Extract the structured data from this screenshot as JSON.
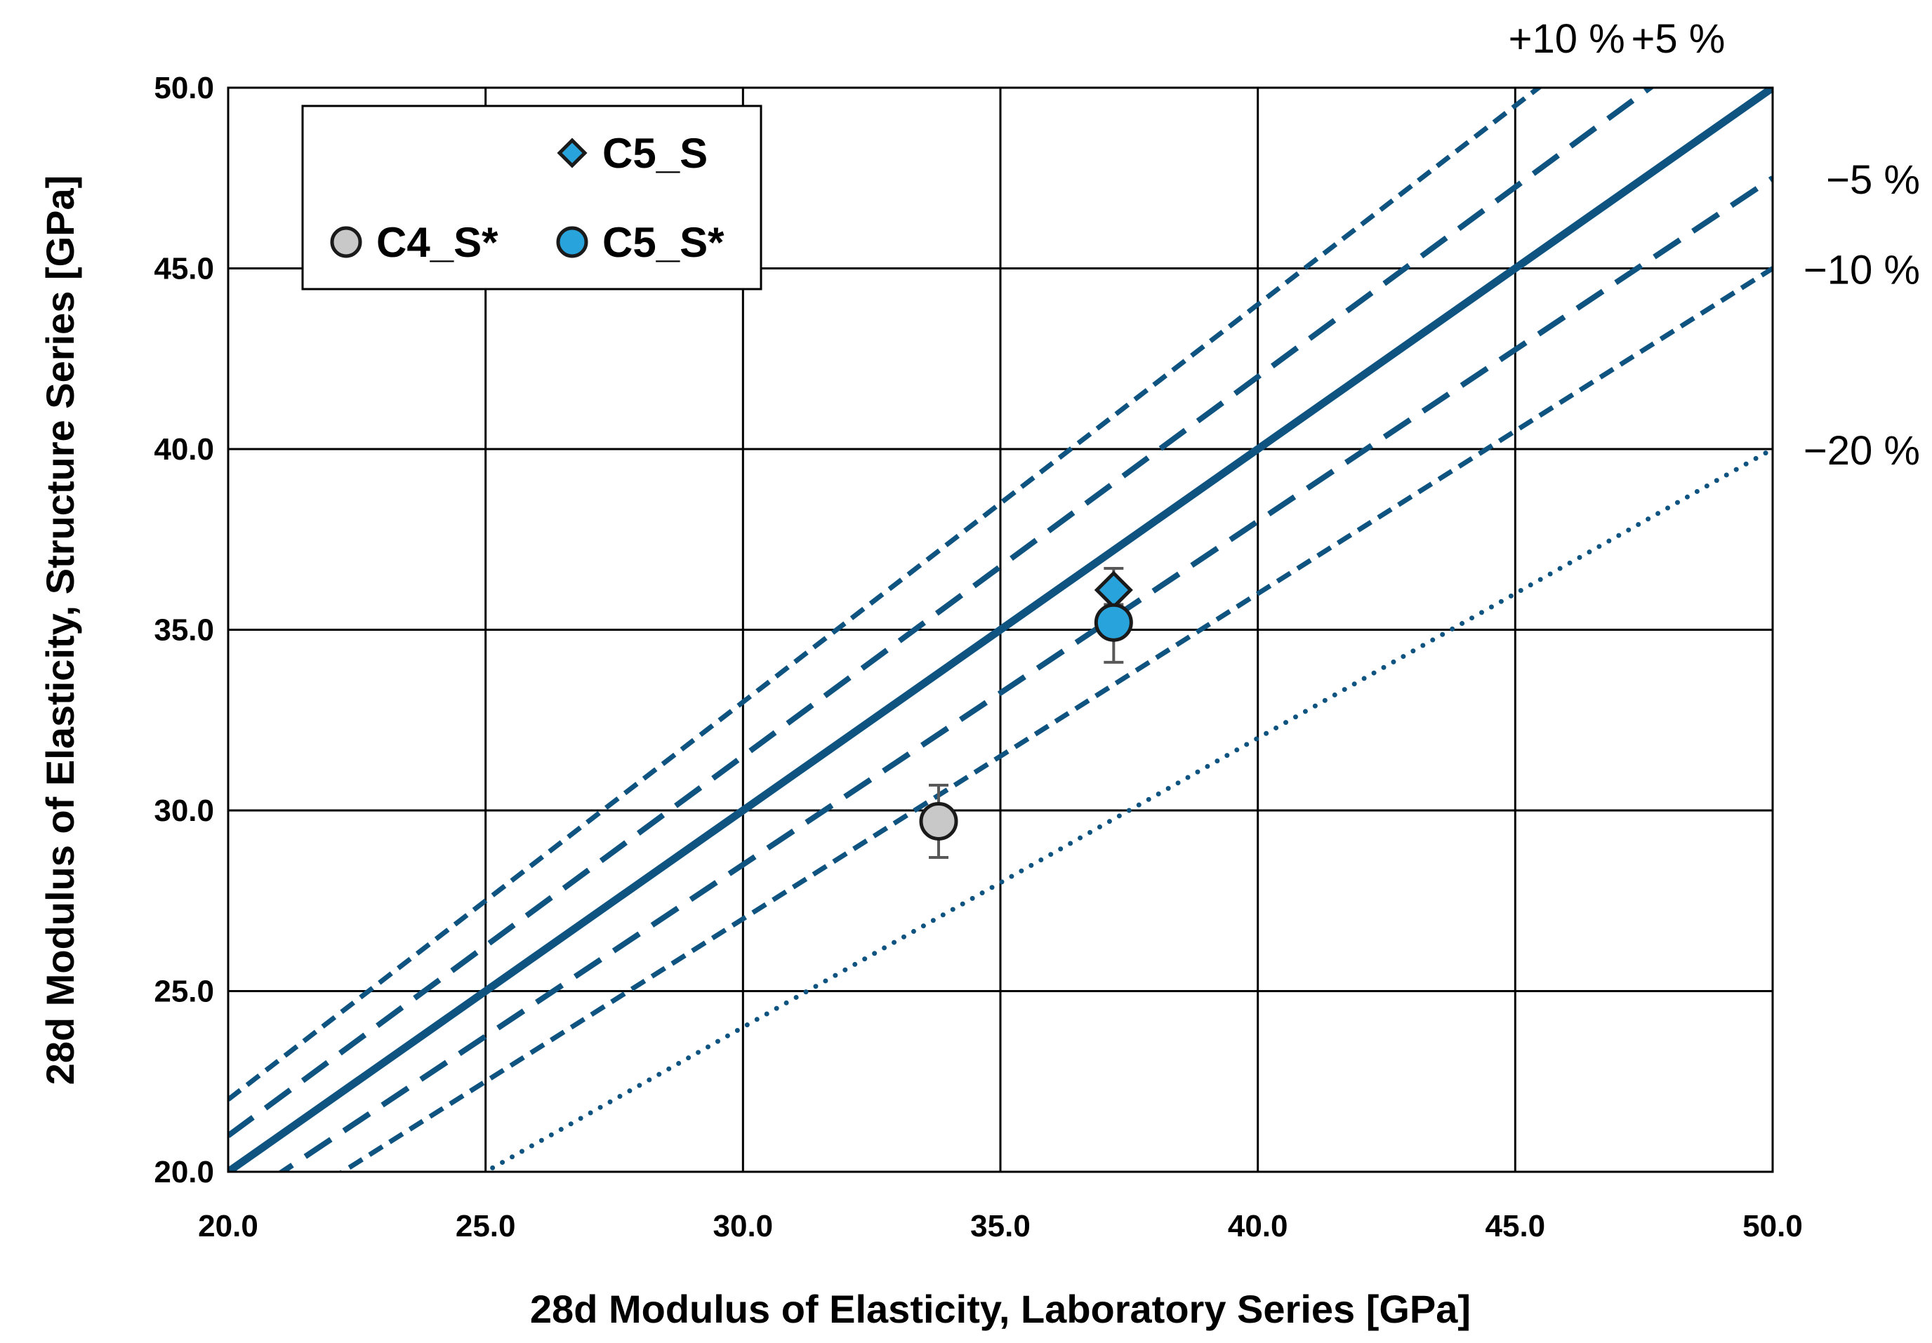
{
  "chart_data": {
    "type": "scatter",
    "xlabel": "28d Modulus of Elasticity, Laboratory Series [GPa]",
    "ylabel": "28d Modulus of Elasticity, Structure Series [GPa]",
    "xlim": [
      20,
      50
    ],
    "ylim": [
      20,
      50
    ],
    "x_ticks": [
      "20.0",
      "25.0",
      "30.0",
      "35.0",
      "40.0",
      "45.0",
      "50.0"
    ],
    "y_ticks": [
      "20.0",
      "25.0",
      "30.0",
      "35.0",
      "40.0",
      "45.0",
      "50.0"
    ],
    "grid": true,
    "legend_position": "top-left",
    "reference_lines": [
      {
        "label": "+10 %",
        "factor": 1.1,
        "style": "short-dash",
        "label_side": "top"
      },
      {
        "label": "+5 %",
        "factor": 1.05,
        "style": "long-dash",
        "label_side": "top"
      },
      {
        "label": "",
        "factor": 1.0,
        "style": "solid",
        "label_side": "none"
      },
      {
        "label": "−5 %",
        "factor": 0.95,
        "style": "long-dash",
        "label_side": "right"
      },
      {
        "label": "−10 %",
        "factor": 0.9,
        "style": "short-dash",
        "label_side": "right"
      },
      {
        "label": "−20 %",
        "factor": 0.8,
        "style": "dotted",
        "label_side": "right"
      }
    ],
    "series": [
      {
        "name": "C5_S",
        "marker": "diamond",
        "color": "#29a3dc",
        "points": [
          {
            "x": 37.2,
            "y": 36.1,
            "err_low": 0.4,
            "err_high": 0.6
          }
        ]
      },
      {
        "name": "C4_S*",
        "marker": "circle",
        "color": "#c8c8c8",
        "points": [
          {
            "x": 33.8,
            "y": 29.7,
            "err_low": 1.0,
            "err_high": 1.0
          }
        ]
      },
      {
        "name": "C5_S*",
        "marker": "circle",
        "color": "#29a3dc",
        "points": [
          {
            "x": 37.2,
            "y": 35.2,
            "err_low": 1.1,
            "err_high": 0.9
          }
        ]
      }
    ],
    "colors": {
      "reference_line": "#0f5480",
      "error_bar": "#595959",
      "grid": "#000000"
    }
  }
}
